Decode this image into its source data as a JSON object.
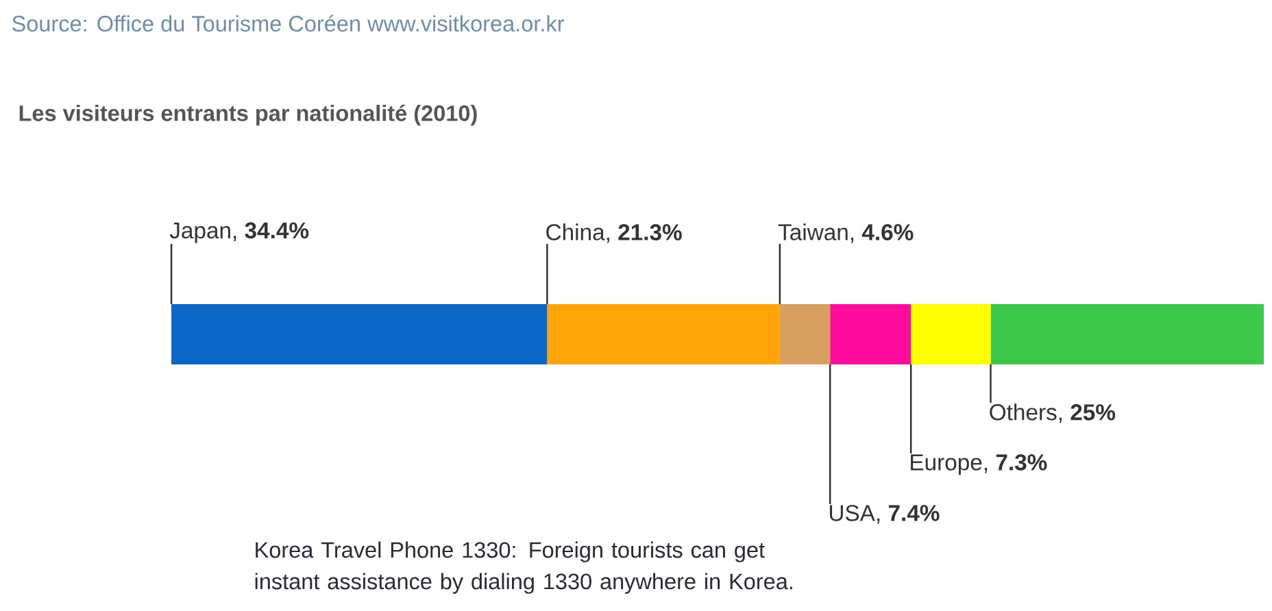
{
  "chart_data": {
    "type": "bar",
    "orientation": "horizontal",
    "stacked": true,
    "title": "Les visiteurs entrants par nationalité (2010)",
    "annotations": [
      "Source: Office du Tourisme Coréen www.visitkorea.or.kr",
      "Korea Travel Phone 1330: Foreign tourists can get instant assistance by dialing 1330 anywhere in Korea."
    ],
    "categories": [
      null
    ],
    "tick_labels": false,
    "legend": false,
    "series": [
      {
        "color": "#0b66c6",
        "values": [
          34.4
        ],
        "value_labels": [
          "Japan, **34.4%**"
        ]
      },
      {
        "color": "#ffa50a",
        "values": [
          21.3
        ],
        "value_labels": [
          "China, **21.3%**"
        ]
      },
      {
        "color": "#d8a060",
        "values": [
          4.6
        ],
        "value_labels": [
          "Taiwan, **4.6%**"
        ]
      },
      {
        "color": "#ff0d9c",
        "values": [
          7.4
        ],
        "value_labels": [
          "USA, **7.4%**"
        ]
      },
      {
        "color": "#ffff00",
        "values": [
          7.3
        ],
        "value_labels": [
          "Europe, **7.3%**"
        ]
      },
      {
        "color": "#3cc84a",
        "values": [
          25
        ],
        "value_labels": [
          "Others, **25%**"
        ]
      }
    ]
  }
}
